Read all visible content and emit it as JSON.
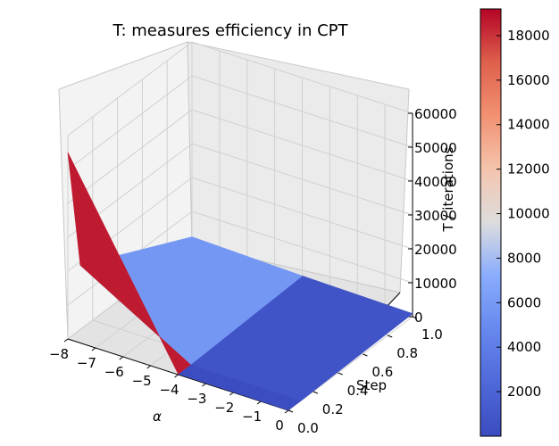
{
  "chart_data": {
    "type": "surface3d",
    "title": "T: measures efficiency in CPT",
    "xlabel": "α",
    "ylabel": "Step",
    "zlabel": "T / iterations",
    "x_ticks": [
      "−8",
      "−7",
      "−6",
      "−5",
      "−4",
      "−3",
      "−2",
      "−1",
      "0"
    ],
    "y_ticks": [
      "0.0",
      "0.2",
      "0.4",
      "0.6",
      "0.8",
      "1.0"
    ],
    "z_ticks": [
      "0",
      "10000",
      "20000",
      "30000",
      "40000",
      "50000",
      "60000"
    ],
    "colorbar_ticks": [
      "2000",
      "4000",
      "6000",
      "8000",
      "10000",
      "12000",
      "14000",
      "16000",
      "18000"
    ],
    "xlim": [
      -8,
      0
    ],
    "ylim": [
      0,
      1
    ],
    "zlim": [
      0,
      60000
    ],
    "color_range": [
      0,
      19200
    ],
    "colormap": "coolwarm",
    "grid": true,
    "x": [
      -8,
      -4,
      0
    ],
    "y": [
      0,
      0.1,
      1
    ],
    "z": [
      [
        55000,
        200,
        50
      ],
      [
        19000,
        180,
        40
      ],
      [
        2500,
        1500,
        900
      ]
    ]
  }
}
